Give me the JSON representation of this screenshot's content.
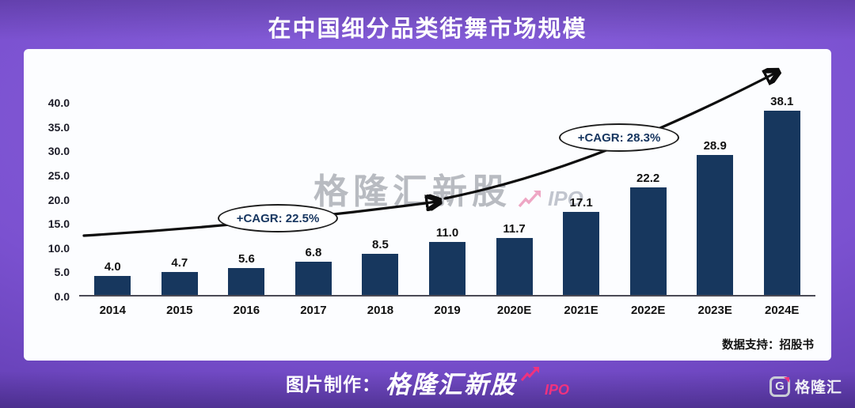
{
  "title": "在中国细分品类街舞市场规模",
  "chart_data": {
    "type": "bar",
    "title": "在中国细分品类街舞市场规模",
    "categories": [
      "2014",
      "2015",
      "2016",
      "2017",
      "2018",
      "2019",
      "2020E",
      "2021E",
      "2022E",
      "2023E",
      "2024E"
    ],
    "values": [
      4.0,
      4.7,
      5.6,
      6.8,
      8.5,
      11.0,
      11.7,
      17.1,
      22.2,
      28.9,
      38.1
    ],
    "xlabel": "",
    "ylabel": "",
    "ylim": [
      0,
      40
    ],
    "ytick_step": 5,
    "yticks": [
      "0.0",
      "5.0",
      "10.0",
      "15.0",
      "20.0",
      "25.0",
      "30.0",
      "35.0",
      "40.0"
    ],
    "grid": false,
    "legend": "none",
    "bar_color": "#17375E",
    "annotations": [
      {
        "label": "+CAGR: 22.5%"
      },
      {
        "label": "+CAGR: 28.3%"
      }
    ]
  },
  "watermark": {
    "text": "格隆汇新股",
    "suffix": "IPO"
  },
  "source_note": "数据支持：招股书",
  "footer": {
    "prefix": "图片制作：",
    "brand": "格隆汇新股",
    "suffix": "IPO"
  },
  "logo": {
    "letter": "G",
    "text": "格隆汇"
  },
  "colors": {
    "background_purple": "#7b51d0",
    "bar": "#17375E",
    "accent_pink": "#f0327e",
    "panel": "#fcfdff",
    "trend_line": "#0d0d0d"
  }
}
